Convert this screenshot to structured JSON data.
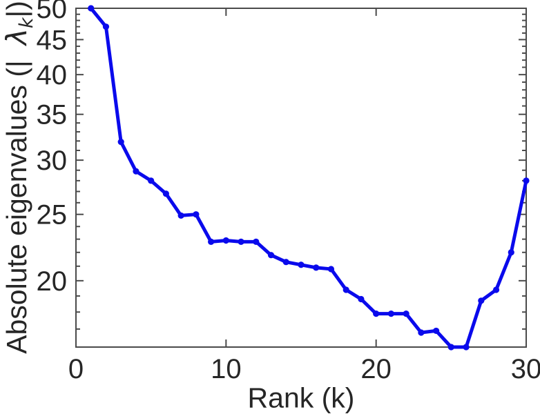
{
  "figure": {
    "background": "#ffffff",
    "text_color": "#262626",
    "axis_color": "#4a4a4a"
  },
  "chart_data": {
    "type": "line",
    "title": "",
    "xlabel": "Rank (k)",
    "ylabel": "Absolute eigenvalues (| λk|)",
    "ylabel_parts": {
      "prefix": "Absolute eigenvalues (|",
      "symbol": "λ",
      "subscript": "k",
      "suffix": "|)"
    },
    "yscale": "log",
    "xlim": [
      0,
      30
    ],
    "ylim": [
      16.0,
      50
    ],
    "x_ticks": [
      0,
      10,
      20,
      30
    ],
    "y_major_ticks": [
      20,
      25,
      30,
      35,
      40,
      45,
      50
    ],
    "y_minor_ticks": [
      17,
      18,
      19,
      21,
      22,
      23,
      24,
      26,
      27,
      28,
      29,
      31,
      32,
      33,
      34,
      36,
      37,
      38,
      39,
      41,
      42,
      43,
      44,
      46,
      47,
      48,
      49
    ],
    "grid": false,
    "legend": "none",
    "box": true,
    "mirrored_ticks": true,
    "series": [
      {
        "name": "absolute-eigenvalues",
        "color": "#0a0aec",
        "marker": "filled-circle",
        "x": [
          1,
          2,
          3,
          4,
          5,
          6,
          7,
          8,
          9,
          10,
          11,
          12,
          13,
          14,
          15,
          16,
          17,
          18,
          19,
          20,
          21,
          22,
          23,
          24,
          25,
          26,
          27,
          28,
          29,
          30
        ],
        "y": [
          50.0,
          47.0,
          31.9,
          28.9,
          28.0,
          26.8,
          24.9,
          25.0,
          22.8,
          22.9,
          22.8,
          22.8,
          21.8,
          21.3,
          21.1,
          20.9,
          20.8,
          19.4,
          18.8,
          17.9,
          17.9,
          17.9,
          16.8,
          16.9,
          16.0,
          16.0,
          18.7,
          19.4,
          22.0,
          28.0
        ]
      }
    ]
  }
}
